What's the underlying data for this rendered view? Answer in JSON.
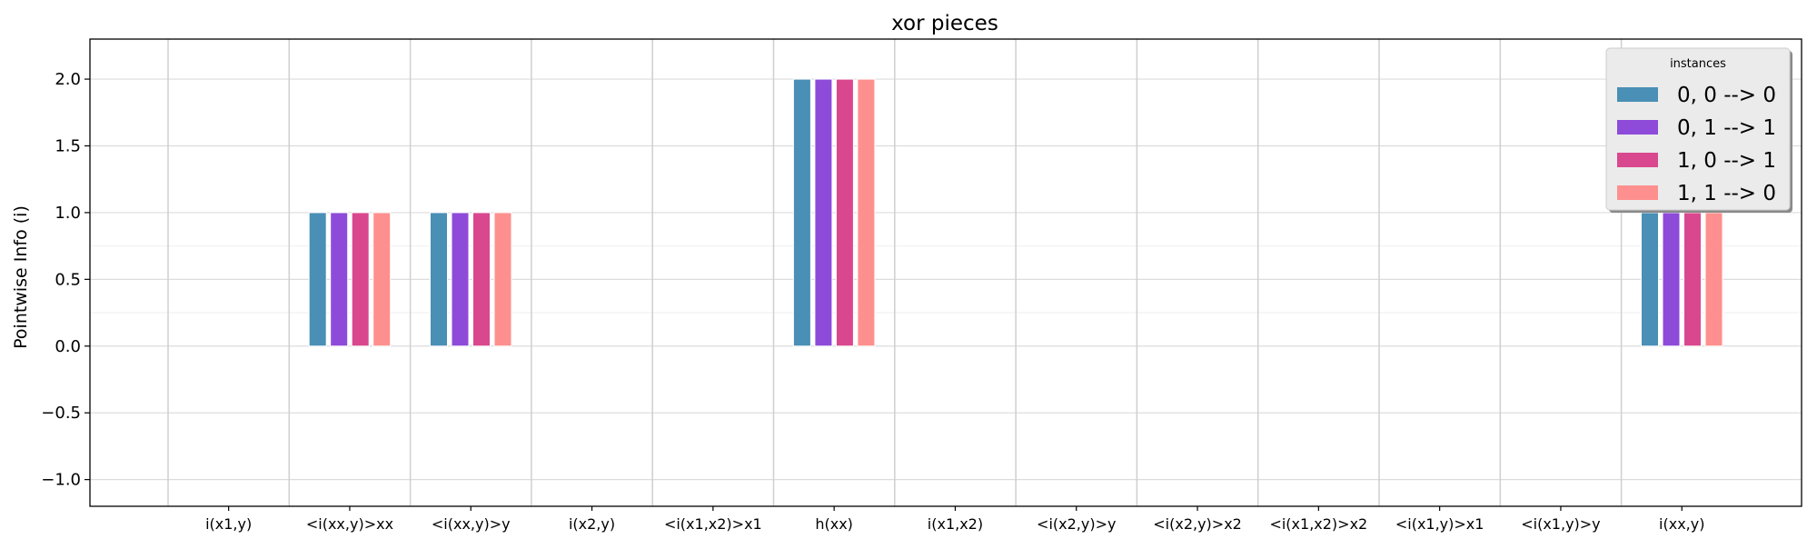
{
  "chart_data": {
    "type": "bar",
    "title": "xor pieces",
    "xlabel": "",
    "ylabel": "Pointwise Info (i)",
    "ylim": [
      -1.2,
      2.3
    ],
    "yticks": [
      -1.0,
      -0.5,
      0.0,
      0.5,
      1.0,
      1.5,
      2.0
    ],
    "ytick_labels": [
      "−1.0",
      "−0.5",
      "0.0",
      "0.5",
      "1.0",
      "1.5",
      "2.0"
    ],
    "grid": true,
    "legend_position": "top-right",
    "legend_title": "instances",
    "categories": [
      "i(x1,y)",
      "<i(xx,y)>xx",
      "<i(xx,y)>y",
      "i(x2,y)",
      "<i(x1,x2)>x1",
      "h(xx)",
      "i(x1,x2)",
      "<i(x2,y)>y",
      "<i(x2,y)>x2",
      "<i(x1,x2)>x2",
      "<i(x1,y)>x1",
      "<i(x1,y)>y",
      "i(xx,y)"
    ],
    "series": [
      {
        "name": "0, 0 --> 0",
        "color": "#4a8fb5",
        "values": [
          0,
          1,
          1,
          0,
          0,
          2,
          0,
          0,
          0,
          0,
          0,
          0,
          1
        ]
      },
      {
        "name": "0, 1 --> 1",
        "color": "#8e4bd9",
        "values": [
          0,
          1,
          1,
          0,
          0,
          2,
          0,
          0,
          0,
          0,
          0,
          0,
          1
        ]
      },
      {
        "name": "1, 0 --> 1",
        "color": "#d9488e",
        "values": [
          0,
          1,
          1,
          0,
          0,
          2,
          0,
          0,
          0,
          0,
          0,
          0,
          1
        ]
      },
      {
        "name": "1, 1 --> 0",
        "color": "#fd908e",
        "values": [
          0,
          1,
          1,
          0,
          0,
          2,
          0,
          0,
          0,
          0,
          0,
          0,
          1
        ]
      }
    ]
  }
}
